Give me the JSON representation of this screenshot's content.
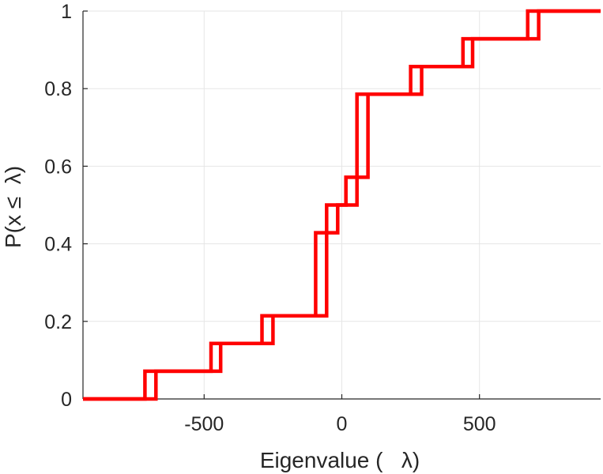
{
  "chart_data": {
    "type": "line",
    "subtype": "empirical-cdf-step",
    "xlabel": "Eigenvalue (   λ)",
    "ylabel": "P(x ≤  λ)",
    "xlim": [
      -940,
      940
    ],
    "ylim": [
      0,
      1
    ],
    "x_ticks": [
      -500,
      0,
      500
    ],
    "x_tick_labels": [
      "-500",
      "0",
      "500"
    ],
    "y_ticks": [
      0,
      0.2,
      0.4,
      0.6,
      0.8,
      1
    ],
    "y_tick_labels": [
      "0",
      "0.2",
      "0.4",
      "0.6",
      "0.8",
      "1"
    ],
    "grid": true,
    "legend": "none",
    "color": "#ff0000",
    "series": [
      {
        "x": [
          -940,
          -715,
          -715,
          -475,
          -475,
          -290,
          -290,
          -95,
          -95,
          -55,
          -55,
          15,
          15,
          55,
          55,
          250,
          250,
          440,
          440,
          675,
          675,
          940
        ],
        "y": [
          0,
          0,
          0.0714,
          0.0714,
          0.1429,
          0.1429,
          0.2143,
          0.2143,
          0.4286,
          0.4286,
          0.5,
          0.5,
          0.5714,
          0.5714,
          0.7857,
          0.7857,
          0.8571,
          0.8571,
          0.9286,
          0.9286,
          1,
          1
        ]
      },
      {
        "x": [
          -940,
          -675,
          -675,
          -440,
          -440,
          -250,
          -250,
          -55,
          -55,
          -15,
          -15,
          55,
          55,
          95,
          95,
          290,
          290,
          475,
          475,
          715,
          715,
          940
        ],
        "y": [
          0,
          0,
          0.0714,
          0.0714,
          0.1429,
          0.1429,
          0.2143,
          0.2143,
          0.4286,
          0.4286,
          0.5,
          0.5,
          0.5714,
          0.5714,
          0.7857,
          0.7857,
          0.8571,
          0.8571,
          0.9286,
          0.9286,
          1,
          1
        ]
      }
    ]
  }
}
